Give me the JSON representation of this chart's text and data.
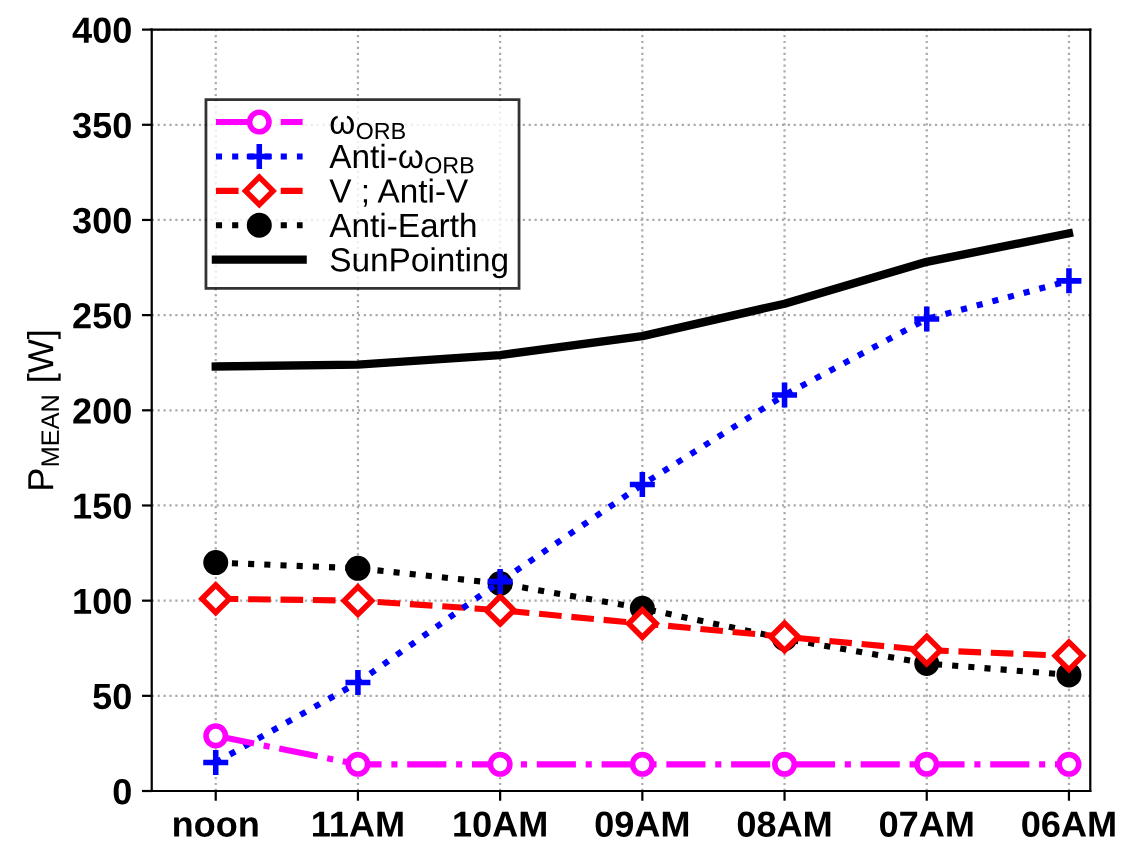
{
  "chart_data": {
    "type": "line",
    "ylabel": "P$_{MEAN}$ [W]",
    "categories": [
      "noon",
      "11AM",
      "10AM",
      "09AM",
      "08AM",
      "07AM",
      "06AM"
    ],
    "ylim": [
      0,
      400
    ],
    "yticks": [
      0,
      50,
      100,
      150,
      200,
      250,
      300,
      350,
      400
    ],
    "grid": true,
    "legend": "top left",
    "series": [
      {
        "name": "ω$_{ORB}$",
        "color": "#ff00ff",
        "marker": "circle",
        "line_style": "dashdot",
        "values": [
          29,
          14,
          14,
          14,
          14,
          14,
          14
        ]
      },
      {
        "name": "Anti-ω$_{ORB}$",
        "color": "#0000ff",
        "marker": "cross",
        "line_style": "dotted",
        "values": [
          15,
          57,
          110,
          161,
          208,
          248,
          268
        ]
      },
      {
        "name": "V ; Anti-V",
        "color": "#ff0000",
        "marker": "diamond",
        "line_style": "dashed",
        "values": [
          101,
          100,
          95,
          88,
          81,
          74,
          71
        ]
      },
      {
        "name": "Anti-Earth",
        "color": "#000000",
        "marker": "filled circle",
        "line_style": "dotted",
        "values": [
          120,
          117,
          109,
          96,
          80,
          67,
          61
        ]
      },
      {
        "name": "SunPointing",
        "color": "#000000",
        "marker": "none",
        "line_style": "solid",
        "values": [
          223,
          224,
          229,
          239,
          256,
          278,
          293
        ]
      }
    ]
  }
}
